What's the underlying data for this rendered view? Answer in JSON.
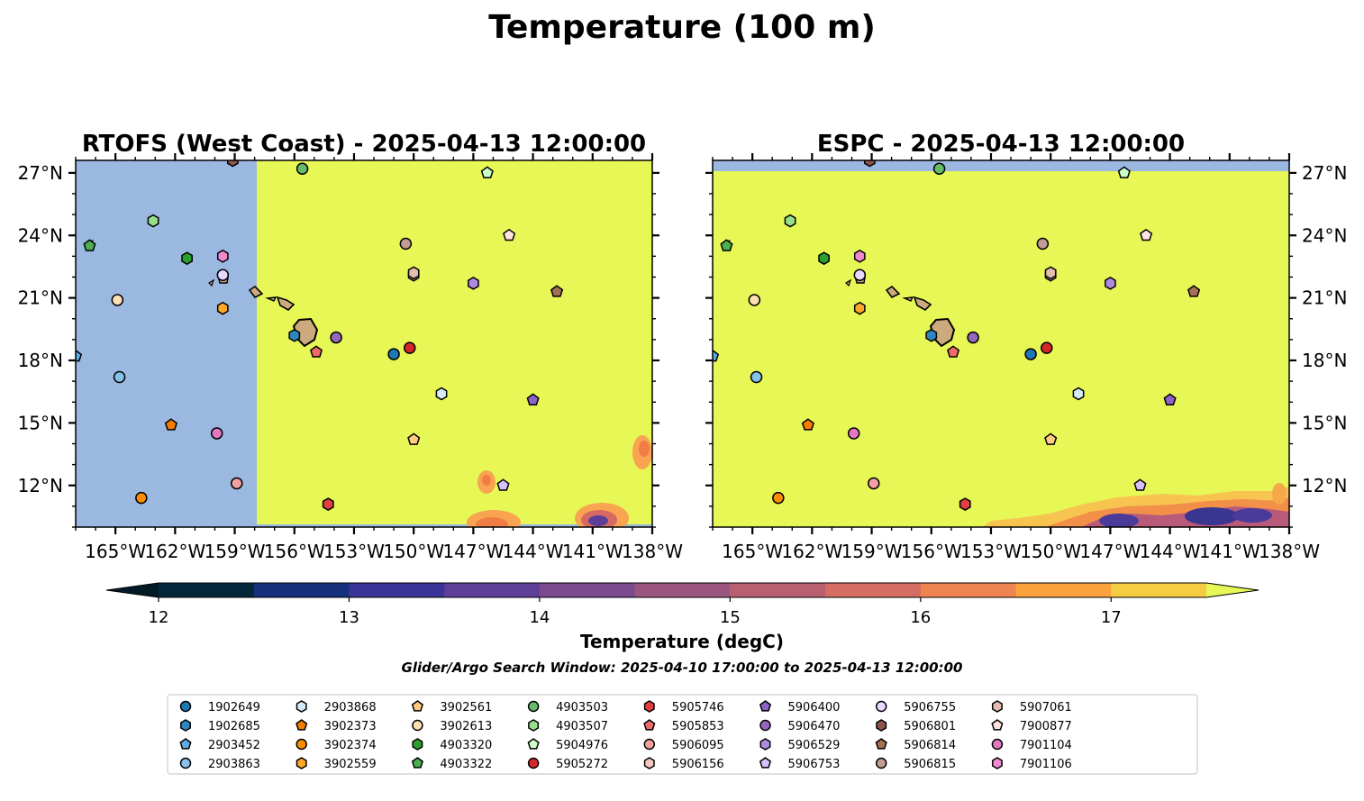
{
  "title": "Temperature (100 m)",
  "chart_data": {
    "type": "heatmap",
    "suptitle": "Temperature (100 m)",
    "panels": [
      {
        "title": "RTOFS (West Coast) - 2025-04-13 12:00:00",
        "field_value_degC": 17.6,
        "land_mask_west_of_lon": -157.8,
        "cool_patches": [
          {
            "lon": -146.5,
            "lat": 12.2,
            "min_degC": 15.8
          },
          {
            "lon": -147.5,
            "lat": 10.5,
            "min_degC": 14.2
          },
          {
            "lon": -141.0,
            "lat": 10.5,
            "min_degC": 13.8
          },
          {
            "lon": -138.5,
            "lat": 13.8,
            "min_degC": 15.9
          }
        ]
      },
      {
        "title": "ESPC - 2025-04-13 12:00:00",
        "field_value_degC": 17.6,
        "masked_north_of_lat": 27.1,
        "cool_patches": [
          {
            "lon": -147.0,
            "lat": 10.5,
            "min_degC": 13.2
          },
          {
            "lon": -141.5,
            "lat": 10.7,
            "min_degC": 12.9
          },
          {
            "lon": -139.0,
            "lat": 11.5,
            "min_degC": 14.5
          }
        ]
      }
    ],
    "xlim": [
      -167.0,
      -138.0
    ],
    "ylim": [
      10.0,
      27.6
    ],
    "xticks": [
      "165°W",
      "162°W",
      "159°W",
      "156°W",
      "153°W",
      "150°W",
      "147°W",
      "144°W",
      "141°W",
      "138°W"
    ],
    "yticks": [
      "27°N",
      "24°N",
      "21°N",
      "18°N",
      "15°N",
      "12°N"
    ],
    "colorbar": {
      "label": "Temperature (degC)",
      "ticks": [
        "12",
        "13",
        "14",
        "15",
        "16",
        "17"
      ],
      "range": [
        12.0,
        17.5
      ],
      "levels": 11,
      "extend": "both"
    },
    "search_window": "Glider/Argo Search Window: 2025-04-10 17:00:00 to 2025-04-13 12:00:00",
    "floats": [
      {
        "id": "1902649",
        "lon": -151.0,
        "lat": 18.3,
        "marker": "circle",
        "color": "#1f77b4"
      },
      {
        "id": "1902685",
        "lon": -156.0,
        "lat": 19.2,
        "marker": "hexagon",
        "color": "#2e86c1"
      },
      {
        "id": "2903452",
        "lon": -167.0,
        "lat": 18.2,
        "marker": "pentagon",
        "color": "#5dade2"
      },
      {
        "id": "2903863",
        "lon": -164.8,
        "lat": 17.2,
        "marker": "circle",
        "color": "#85c1e9"
      },
      {
        "id": "2903868",
        "lon": -148.6,
        "lat": 16.4,
        "marker": "hexagon",
        "color": "#d6eaf8"
      },
      {
        "id": "3902373",
        "lon": -162.2,
        "lat": 14.9,
        "marker": "pentagon",
        "color": "#f57c00"
      },
      {
        "id": "3902374",
        "lon": -163.7,
        "lat": 11.4,
        "marker": "circle",
        "color": "#fb8c00"
      },
      {
        "id": "3902559",
        "lon": -159.6,
        "lat": 20.5,
        "marker": "hexagon",
        "color": "#ffa726"
      },
      {
        "id": "3902561",
        "lon": -150.0,
        "lat": 14.2,
        "marker": "pentagon",
        "color": "#ffcc80"
      },
      {
        "id": "3902613",
        "lon": -164.9,
        "lat": 20.9,
        "marker": "circle",
        "color": "#ffe0b2"
      },
      {
        "id": "4903320",
        "lon": -161.4,
        "lat": 22.9,
        "marker": "hexagon",
        "color": "#2ca02c"
      },
      {
        "id": "4903322",
        "lon": -166.3,
        "lat": 23.5,
        "marker": "pentagon",
        "color": "#4caf50"
      },
      {
        "id": "4903503",
        "lon": -155.6,
        "lat": 27.2,
        "marker": "circle",
        "color": "#66bb6a"
      },
      {
        "id": "4903507",
        "lon": -163.1,
        "lat": 24.7,
        "marker": "hexagon",
        "color": "#98df8a"
      },
      {
        "id": "5904976",
        "lon": -146.3,
        "lat": 27.0,
        "marker": "pentagon",
        "color": "#ccffcc"
      },
      {
        "id": "5905272",
        "lon": -150.2,
        "lat": 18.6,
        "marker": "circle",
        "color": "#d62728"
      },
      {
        "id": "5905746",
        "lon": -154.3,
        "lat": 11.1,
        "marker": "hexagon",
        "color": "#e04040"
      },
      {
        "id": "5905853",
        "lon": -154.9,
        "lat": 18.4,
        "marker": "pentagon",
        "color": "#f06a6a"
      },
      {
        "id": "5906095",
        "lon": -158.9,
        "lat": 12.1,
        "marker": "circle",
        "color": "#f4a0a0"
      },
      {
        "id": "5906156",
        "lon": -150.0,
        "lat": 22.1,
        "marker": "hexagon",
        "color": "#f8c8c0"
      },
      {
        "id": "5906400",
        "lon": -144.0,
        "lat": 16.1,
        "marker": "pentagon",
        "color": "#8e63c8"
      },
      {
        "id": "5906470",
        "lon": -153.9,
        "lat": 19.1,
        "marker": "circle",
        "color": "#9467bd"
      },
      {
        "id": "5906529",
        "lon": -147.0,
        "lat": 21.7,
        "marker": "hexagon",
        "color": "#b08ae0"
      },
      {
        "id": "5906753",
        "lon": -145.5,
        "lat": 12.0,
        "marker": "pentagon",
        "color": "#d8c0ff"
      },
      {
        "id": "5906755",
        "lon": -159.6,
        "lat": 22.1,
        "marker": "circle",
        "color": "#e6d8ff"
      },
      {
        "id": "5906801",
        "lon": -159.1,
        "lat": 27.6,
        "marker": "hexagon",
        "color": "#8c564b"
      },
      {
        "id": "5906814",
        "lon": -142.8,
        "lat": 21.3,
        "marker": "pentagon",
        "color": "#a47058"
      },
      {
        "id": "5906815",
        "lon": -150.4,
        "lat": 23.6,
        "marker": "circle",
        "color": "#c49c94"
      },
      {
        "id": "5907061",
        "lon": -150.0,
        "lat": 22.2,
        "marker": "hexagon",
        "color": "#e4bcb0"
      },
      {
        "id": "7900877",
        "lon": -145.2,
        "lat": 24.0,
        "marker": "pentagon",
        "color": "#ffe4e0"
      },
      {
        "id": "7901104",
        "lon": -159.9,
        "lat": 14.5,
        "marker": "circle",
        "color": "#e377c2"
      },
      {
        "id": "7901106",
        "lon": -159.6,
        "lat": 23.0,
        "marker": "hexagon",
        "color": "#f08ad0"
      }
    ]
  }
}
